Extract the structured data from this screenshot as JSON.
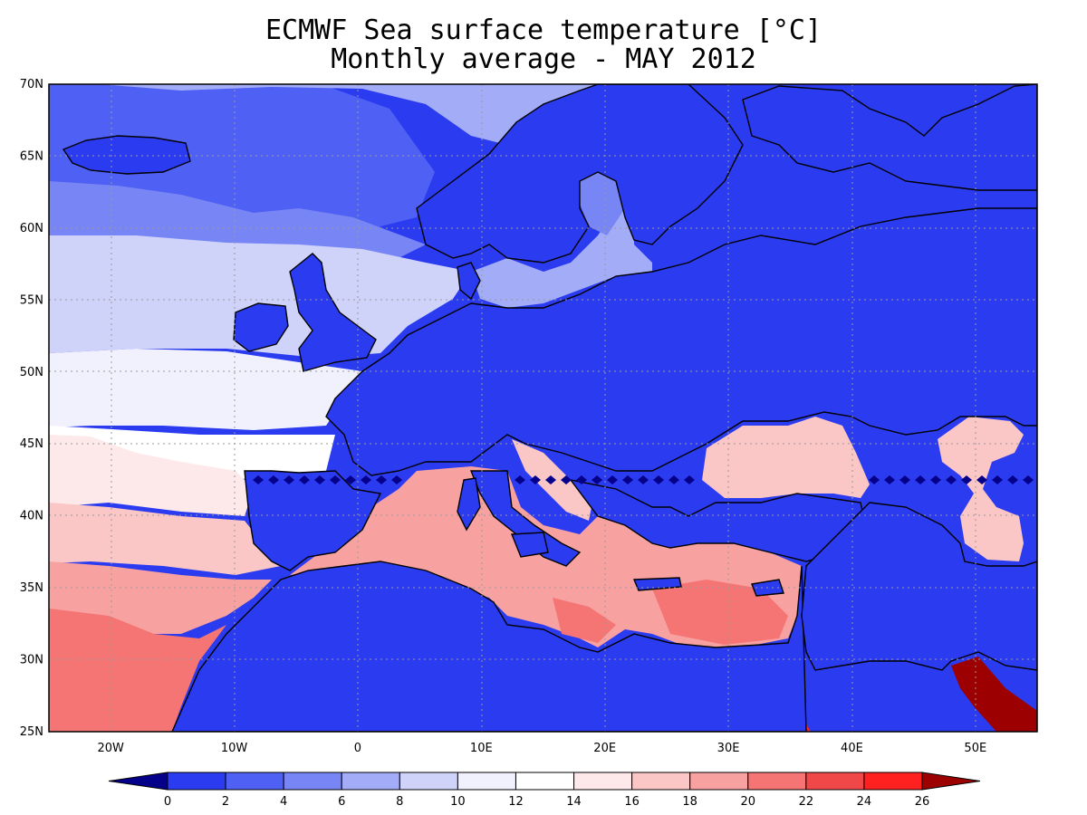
{
  "title_line1": "ECMWF Sea surface temperature [°C]",
  "title_line2": "Monthly average - MAY 2012",
  "map": {
    "lon_range": [
      -25,
      55
    ],
    "lat_range": [
      25,
      70
    ],
    "lat_labels": [
      "70N",
      "65N",
      "60N",
      "55N",
      "50N",
      "45N",
      "40N",
      "35N",
      "30N",
      "25N"
    ],
    "lat_values": [
      70,
      65,
      60,
      55,
      50,
      45,
      40,
      35,
      30,
      25
    ],
    "lon_labels": [
      "20W",
      "10W",
      "0",
      "10E",
      "20E",
      "30E",
      "40E",
      "50E"
    ],
    "lon_values": [
      -20,
      -10,
      0,
      10,
      20,
      30,
      40,
      50
    ],
    "gridlines": true,
    "land_fill_color": "#2a3bf0"
  },
  "colorbar": {
    "tick_labels": [
      "0",
      "2",
      "4",
      "6",
      "8",
      "10",
      "12",
      "14",
      "16",
      "18",
      "20",
      "22",
      "24",
      "26"
    ],
    "colors": [
      "#05008a",
      "#2a3bf0",
      "#4f60f4",
      "#7885f5",
      "#a3acf7",
      "#cfd3fa",
      "#f0f1fd",
      "#ffffff",
      "#fde9ea",
      "#fbc6c6",
      "#f7a1a1",
      "#f57474",
      "#f04848",
      "#ff2020",
      "#9c0000"
    ]
  }
}
